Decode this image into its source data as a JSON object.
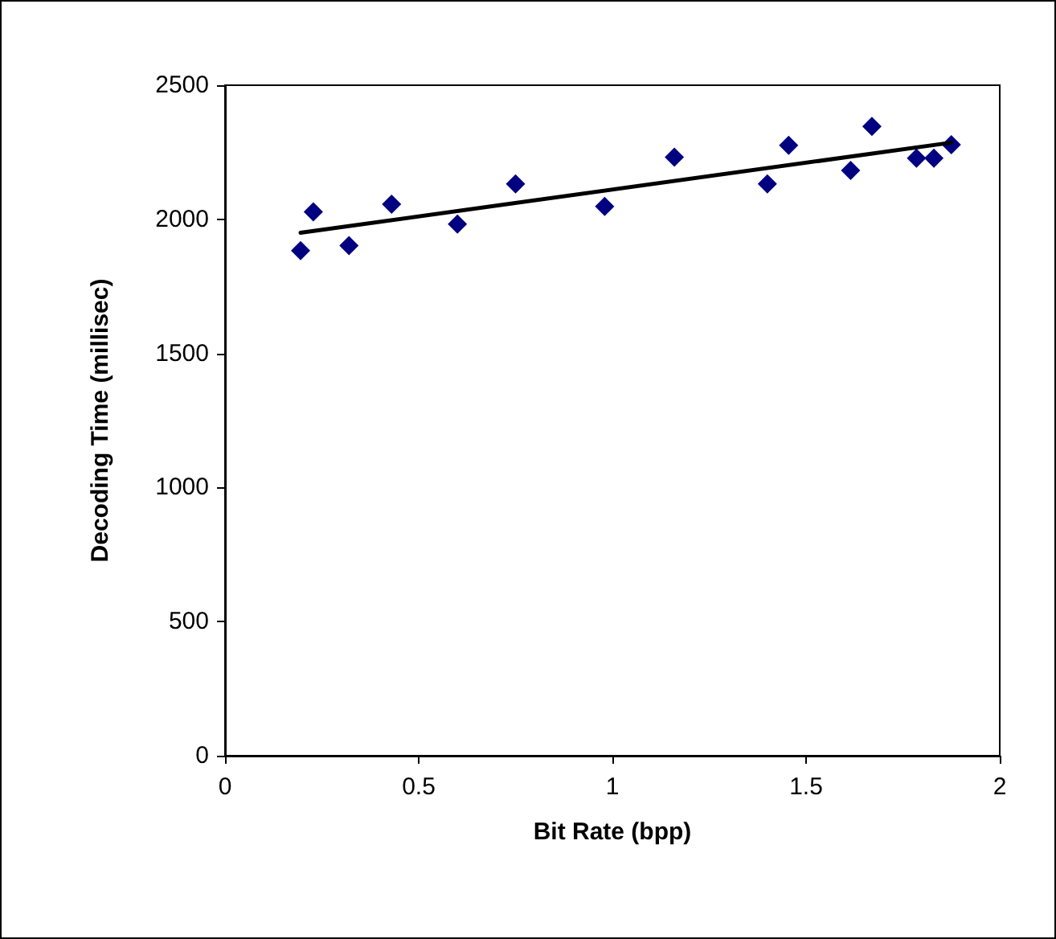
{
  "chart_data": {
    "type": "scatter",
    "xlabel": "Bit Rate (bpp)",
    "ylabel": "Decoding Time (millisec)",
    "xlim": [
      0,
      2
    ],
    "xticks": [
      0,
      0.5,
      1,
      1.5,
      2
    ],
    "ylim": [
      0,
      2500
    ],
    "yticks": [
      0,
      500,
      1000,
      1500,
      2000,
      2500
    ],
    "grid": false,
    "marker": "diamond",
    "series": [
      {
        "color": "#000080",
        "x": [
          0.195,
          0.228,
          0.32,
          0.43,
          0.6,
          0.75,
          0.98,
          1.16,
          1.4,
          1.455,
          1.615,
          1.67,
          1.785,
          1.83,
          1.875
        ],
        "values": [
          1883,
          2028,
          1902,
          2056,
          1982,
          2132,
          2048,
          2232,
          2132,
          2276,
          2182,
          2346,
          2228,
          2228,
          2278
        ]
      },
      {
        "type": "line",
        "color": "#000000",
        "x": [
          0.195,
          1.875
        ],
        "values": [
          1950,
          2286
        ],
        "marker": "none",
        "line_style": "solid"
      }
    ]
  }
}
